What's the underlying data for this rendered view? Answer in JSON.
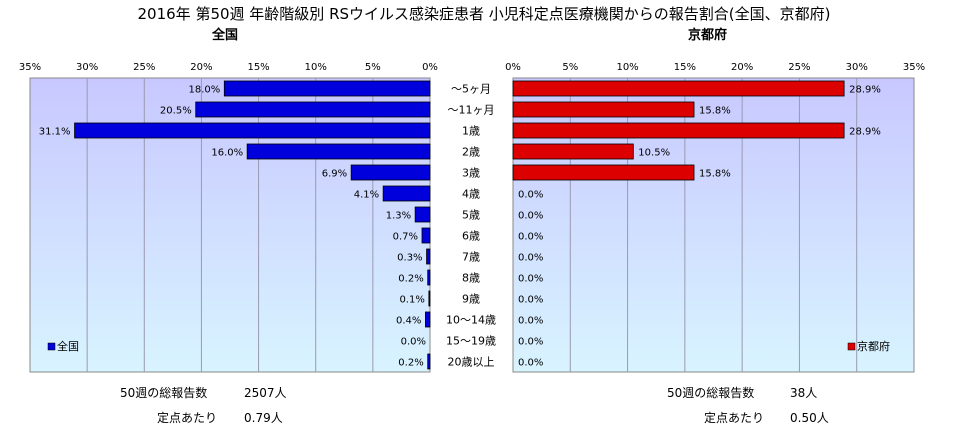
{
  "title": "2016年 第50週 年齢階級別 RSウイルス感染症患者 小児科定点医療機関からの報告割合(全国、京都府)",
  "colors": {
    "national": "#0000dd",
    "kyoto": "#dd0000",
    "plot_top": "#c8c8ff",
    "plot_bottom": "#d8f4ff"
  },
  "chart_data": [
    {
      "type": "bar",
      "panel_title": "全国",
      "legend": "全国",
      "orientation": "horizontal-reversed",
      "xlim": [
        0,
        35
      ],
      "tick_labels": [
        "35%",
        "30%",
        "25%",
        "20%",
        "15%",
        "10%",
        "5%",
        "0%"
      ],
      "categories": [
        "～5ヶ月",
        "～11ヶ月",
        "1歳",
        "2歳",
        "3歳",
        "4歳",
        "5歳",
        "6歳",
        "7歳",
        "8歳",
        "9歳",
        "10～14歳",
        "15～19歳",
        "20歳以上"
      ],
      "values": [
        18.0,
        20.5,
        31.1,
        16.0,
        6.9,
        4.1,
        1.3,
        0.7,
        0.3,
        0.2,
        0.1,
        0.4,
        0.0,
        0.2
      ],
      "value_labels": [
        "18.0%",
        "20.5%",
        "31.1%",
        "16.0%",
        "6.9%",
        "4.1%",
        "1.3%",
        "0.7%",
        "0.3%",
        "0.2%",
        "0.1%",
        "0.4%",
        "0.0%",
        "0.2%"
      ]
    },
    {
      "type": "bar",
      "panel_title": "京都府",
      "legend": "京都府",
      "orientation": "horizontal",
      "xlim": [
        0,
        35
      ],
      "tick_labels": [
        "0%",
        "5%",
        "10%",
        "15%",
        "20%",
        "25%",
        "30%",
        "35%"
      ],
      "categories": [
        "～5ヶ月",
        "～11ヶ月",
        "1歳",
        "2歳",
        "3歳",
        "4歳",
        "5歳",
        "6歳",
        "7歳",
        "8歳",
        "9歳",
        "10～14歳",
        "15～19歳",
        "20歳以上"
      ],
      "values": [
        28.9,
        15.8,
        28.9,
        10.5,
        15.8,
        0.0,
        0.0,
        0.0,
        0.0,
        0.0,
        0.0,
        0.0,
        0.0,
        0.0
      ],
      "value_labels": [
        "28.9%",
        "15.8%",
        "28.9%",
        "10.5%",
        "15.8%",
        "0.0%",
        "0.0%",
        "0.0%",
        "0.0%",
        "0.0%",
        "0.0%",
        "0.0%",
        "0.0%",
        "0.0%"
      ]
    }
  ],
  "footer": {
    "national": {
      "total_label": "50週の総報告数",
      "total_value": "2507人",
      "per_label": "定点あたり",
      "per_value": "0.79人"
    },
    "kyoto": {
      "total_label": "50週の総報告数",
      "total_value": "38人",
      "per_label": "定点あたり",
      "per_value": "0.50人"
    }
  }
}
